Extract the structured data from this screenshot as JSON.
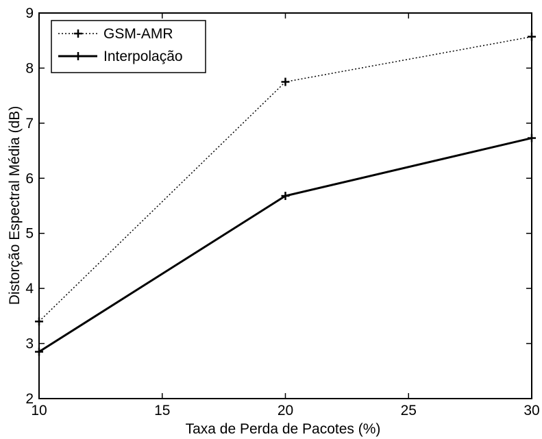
{
  "chart_data": {
    "type": "line",
    "xlabel": "Taxa de Perda de Pacotes (%)",
    "ylabel": "Distorção Espectral Média (dB)",
    "xlim": [
      10,
      30
    ],
    "ylim": [
      2,
      9
    ],
    "xticks": [
      "10",
      "15",
      "20",
      "25",
      "30"
    ],
    "yticks": [
      "2",
      "3",
      "4",
      "5",
      "6",
      "7",
      "8",
      "9"
    ],
    "grid": false,
    "legend_position": "top-left",
    "x": [
      10,
      20,
      30
    ],
    "series": [
      {
        "name": "GSM-AMR",
        "values": [
          3.4,
          7.75,
          8.57
        ],
        "style": "dotted",
        "marker": "plus",
        "color": "#000000"
      },
      {
        "name": "Interpolação",
        "values": [
          2.85,
          5.68,
          6.73
        ],
        "style": "solid",
        "marker": "plus",
        "color": "#000000"
      }
    ]
  }
}
